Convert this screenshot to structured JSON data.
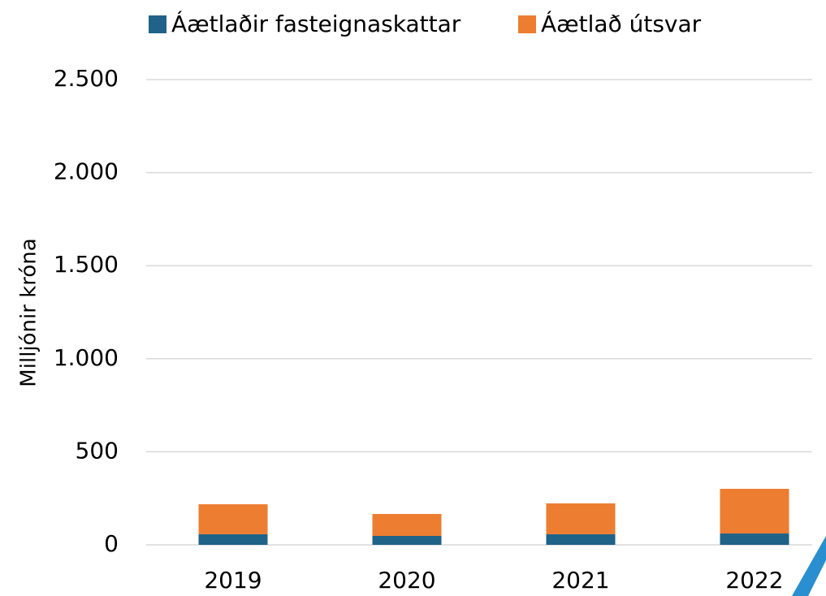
{
  "chart_data": {
    "type": "stacked-bar",
    "y_label": "Milljónir króna",
    "categories": [
      "2019",
      "2020",
      "2021",
      "2022"
    ],
    "series": [
      {
        "name": "Áætlaðir fasteignaskattar",
        "color": "#1f6388",
        "values": [
          57,
          48,
          57,
          61
        ]
      },
      {
        "name": "Áætlað útsvar",
        "color": "#ed7d31",
        "values": [
          161,
          118,
          166,
          240
        ]
      }
    ],
    "ylim": [
      0,
      2500
    ],
    "yticks": [
      0,
      500,
      {
        "value": 1000,
        "label": "1.000"
      },
      {
        "value": 1500,
        "label": "1.500"
      },
      {
        "value": 2000,
        "label": "2.000"
      },
      {
        "value": 2500,
        "label": "2.500"
      }
    ],
    "grid": true,
    "legend": "top"
  }
}
